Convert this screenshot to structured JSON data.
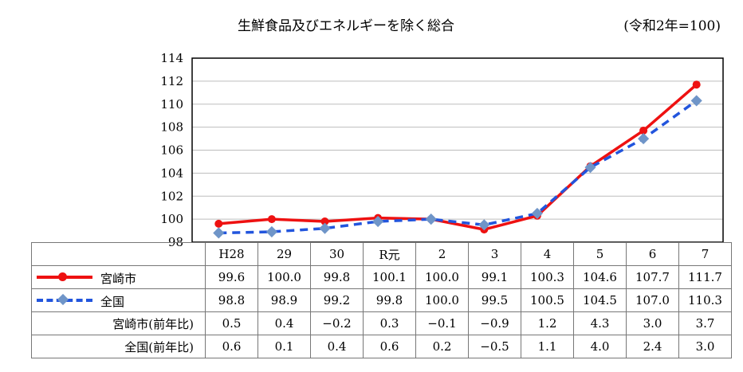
{
  "chart_data": {
    "type": "line",
    "title": "生鮮食品及びエネルギーを除く総合",
    "unit_note": "(令和2年=100)",
    "categories": [
      "H28",
      "29",
      "30",
      "R元",
      "2",
      "3",
      "4",
      "5",
      "6",
      "7"
    ],
    "ylim": [
      98,
      114
    ],
    "yticks": [
      "98",
      "100",
      "102",
      "104",
      "106",
      "108",
      "110",
      "112",
      "114"
    ],
    "grid": true,
    "series": [
      {
        "name": "宮崎市",
        "color": "#ee1111",
        "marker": "circle",
        "line": "solid",
        "values": [
          99.6,
          100.0,
          99.8,
          100.1,
          100.0,
          99.1,
          100.3,
          104.6,
          107.7,
          111.7
        ],
        "display": [
          "99.6",
          "100.0",
          "99.8",
          "100.1",
          "100.0",
          "99.1",
          "100.3",
          "104.6",
          "107.7",
          "111.7"
        ]
      },
      {
        "name": "全国",
        "color": "#2255dd",
        "marker": "diamond",
        "line": "dashed",
        "values": [
          98.8,
          98.9,
          99.2,
          99.8,
          100.0,
          99.5,
          100.5,
          104.5,
          107.0,
          110.3
        ],
        "display": [
          "98.8",
          "98.9",
          "99.2",
          "99.8",
          "100.0",
          "99.5",
          "100.5",
          "104.5",
          "107.0",
          "110.3"
        ]
      }
    ],
    "table_rows": [
      {
        "label": "宮崎市(前年比)",
        "values": [
          "0.5",
          "0.4",
          "−0.2",
          "0.3",
          "−0.1",
          "−0.9",
          "1.2",
          "4.3",
          "3.0",
          "3.7"
        ]
      },
      {
        "label": "全国(前年比)",
        "values": [
          "0.6",
          "0.1",
          "0.4",
          "0.6",
          "0.2",
          "−0.5",
          "1.1",
          "4.0",
          "2.4",
          "3.0"
        ]
      }
    ]
  }
}
